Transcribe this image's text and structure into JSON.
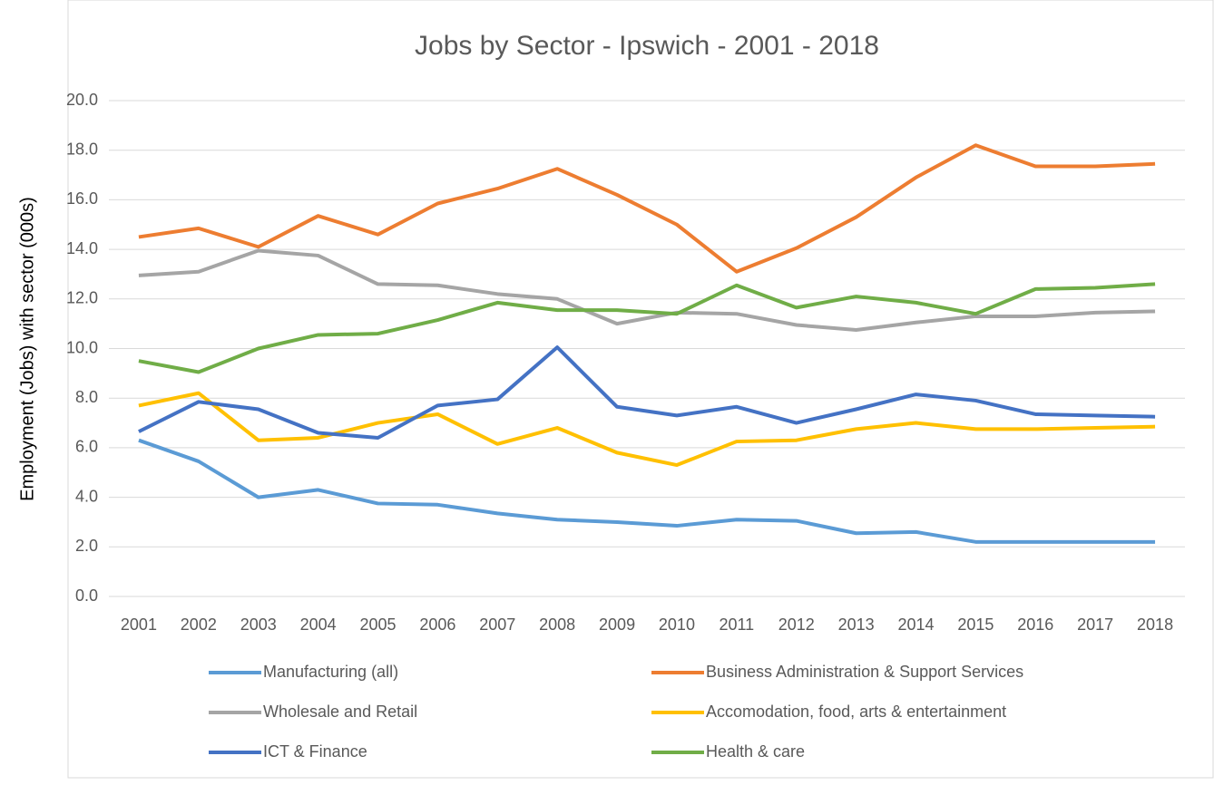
{
  "chart_data": {
    "type": "line",
    "title": "Jobs by Sector - Ipswich - 2001 - 2018",
    "y_label": "Employment (Jobs) with sector (000s)",
    "categories": [
      "2001",
      "2002",
      "2003",
      "2004",
      "2005",
      "2006",
      "2007",
      "2008",
      "2009",
      "2010",
      "2011",
      "2012",
      "2013",
      "2014",
      "2015",
      "2016",
      "2017",
      "2018"
    ],
    "series": [
      {
        "name": "Manufacturing (all)",
        "color": "#5b9bd5",
        "values": [
          6.3,
          5.45,
          4.0,
          4.3,
          3.75,
          3.7,
          3.35,
          3.1,
          3.0,
          2.85,
          3.1,
          3.05,
          2.55,
          2.6,
          2.2,
          2.2,
          2.2,
          2.2
        ]
      },
      {
        "name": "Business Administration & Support Services",
        "color": "#ed7d31",
        "values": [
          14.5,
          14.85,
          14.1,
          15.35,
          14.6,
          15.85,
          16.45,
          17.25,
          16.2,
          15.0,
          13.1,
          14.05,
          15.3,
          16.9,
          18.2,
          17.35,
          17.35,
          17.45
        ]
      },
      {
        "name": "Wholesale and Retail",
        "color": "#a5a5a5",
        "values": [
          12.95,
          13.1,
          13.95,
          13.75,
          12.6,
          12.55,
          12.2,
          12.0,
          11.0,
          11.45,
          11.4,
          10.95,
          10.75,
          11.05,
          11.3,
          11.3,
          11.45,
          11.5
        ]
      },
      {
        "name": "Accomodation, food, arts & entertainment",
        "color": "#ffc000",
        "values": [
          7.7,
          8.2,
          6.3,
          6.4,
          7.0,
          7.35,
          6.15,
          6.8,
          5.8,
          5.3,
          6.25,
          6.3,
          6.75,
          7.0,
          6.75,
          6.75,
          6.8,
          6.85
        ]
      },
      {
        "name": "ICT & Finance",
        "color": "#4472c4",
        "values": [
          6.65,
          7.85,
          7.55,
          6.6,
          6.4,
          7.7,
          7.95,
          10.05,
          7.65,
          7.3,
          7.65,
          7.0,
          7.55,
          8.15,
          7.9,
          7.35,
          7.3,
          7.25
        ]
      },
      {
        "name": "Health & care",
        "color": "#70ad47",
        "values": [
          9.5,
          9.05,
          10.0,
          10.55,
          10.6,
          11.15,
          11.85,
          11.55,
          11.55,
          11.4,
          12.55,
          11.65,
          12.1,
          11.85,
          11.4,
          12.4,
          12.45,
          12.6
        ]
      }
    ],
    "ylim": [
      0,
      20
    ],
    "yticks": [
      {
        "value": 0,
        "label": "0.0"
      },
      {
        "value": 2,
        "label": "2.0"
      },
      {
        "value": 4,
        "label": "4.0"
      },
      {
        "value": 6,
        "label": "6.0"
      },
      {
        "value": 8,
        "label": "8.0"
      },
      {
        "value": 10,
        "label": "10.0"
      },
      {
        "value": 12,
        "label": "12.0"
      },
      {
        "value": 14,
        "label": "14.0"
      },
      {
        "value": 16,
        "label": "16.0"
      },
      {
        "value": 18,
        "label": "18.0"
      },
      {
        "value": 20,
        "label": "20.0"
      }
    ],
    "grid": true,
    "legend": "bottom"
  }
}
